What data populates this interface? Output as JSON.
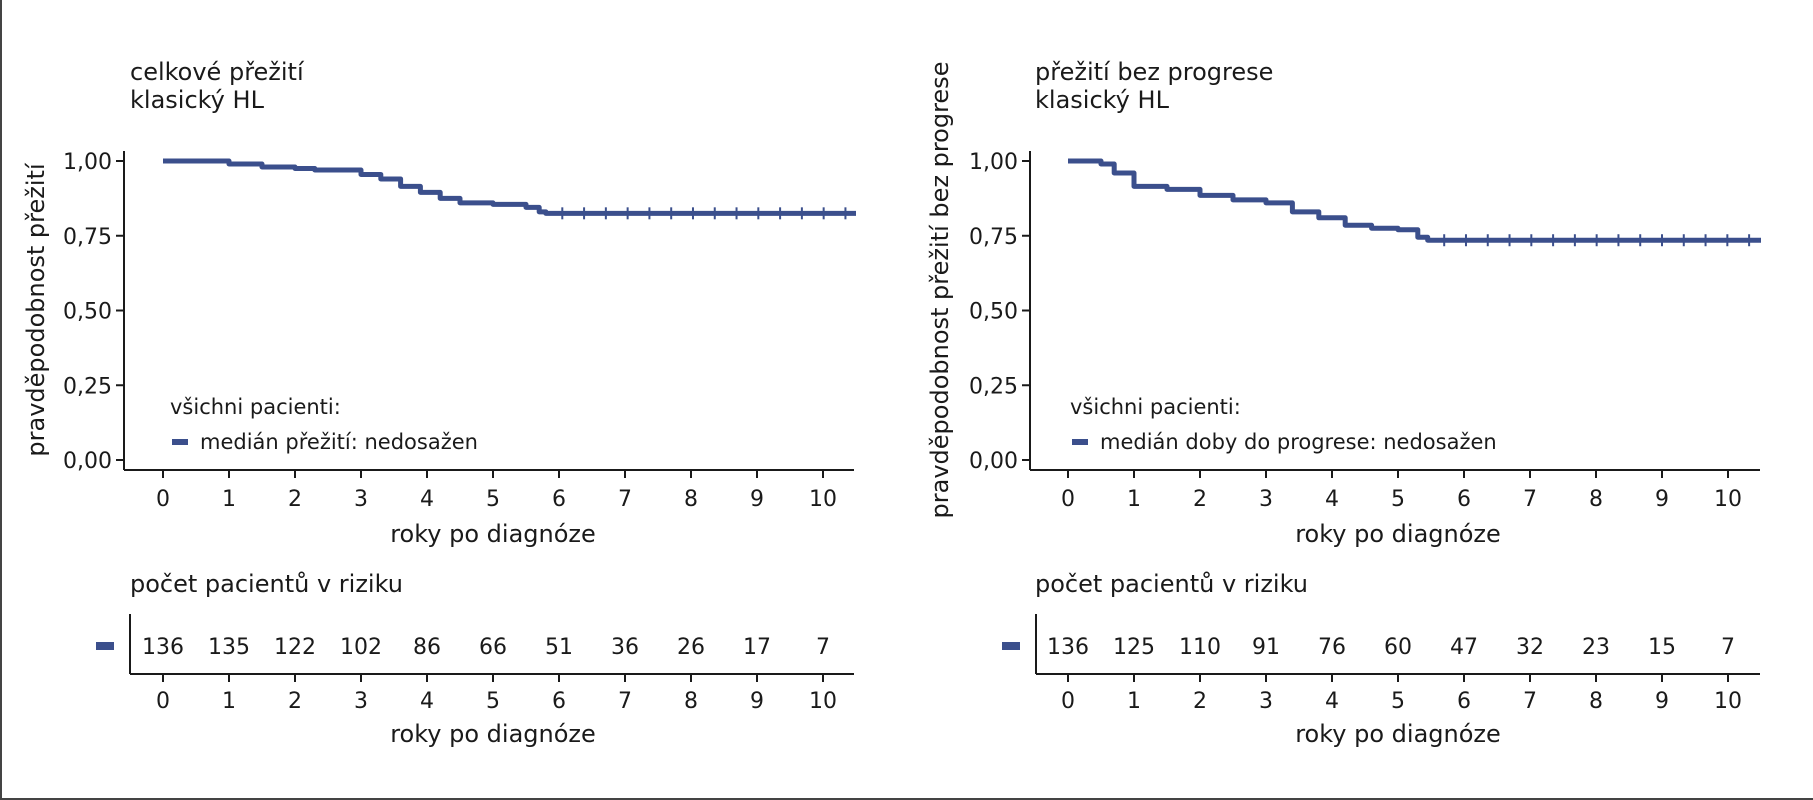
{
  "chart_data": [
    {
      "type": "line",
      "title": "celkové přežití",
      "subtitle": "klasický HL",
      "xlabel": "roky po diagnóze",
      "ylabel": "pravděpodobnost přežití",
      "xlim": [
        0,
        10.5
      ],
      "ylim": [
        0,
        1
      ],
      "x_ticks": [
        "0",
        "1",
        "2",
        "3",
        "4",
        "5",
        "6",
        "7",
        "8",
        "9",
        "10"
      ],
      "y_ticks": [
        "0,00",
        "0,25",
        "0,50",
        "0,75",
        "1,00"
      ],
      "grid": false,
      "legend": {
        "placement": "bottom-left",
        "heading": "všichni pacienti:",
        "entry": "medián přežití: nedosažen"
      },
      "series": [
        {
          "color": "#3b4f8c",
          "x": [
            0,
            0.9,
            1.0,
            1.5,
            2.0,
            2.3,
            2.8,
            3.0,
            3.3,
            3.6,
            3.9,
            4.2,
            4.5,
            5.0,
            5.5,
            5.7,
            5.8,
            10.5
          ],
          "y": [
            1.0,
            1.0,
            0.99,
            0.98,
            0.975,
            0.97,
            0.97,
            0.955,
            0.94,
            0.915,
            0.895,
            0.875,
            0.86,
            0.855,
            0.845,
            0.83,
            0.825,
            0.825
          ]
        }
      ],
      "risk_table": {
        "title": "počet pacientů v riziku",
        "xlabel": "roky po diagnóze",
        "x_ticks": [
          "0",
          "1",
          "2",
          "3",
          "4",
          "5",
          "6",
          "7",
          "8",
          "9",
          "10"
        ],
        "counts": [
          "136",
          "135",
          "122",
          "102",
          "86",
          "66",
          "51",
          "36",
          "26",
          "17",
          "7"
        ]
      }
    },
    {
      "type": "line",
      "title": "přežití bez progrese",
      "subtitle": "klasický HL",
      "xlabel": "roky po diagnóze",
      "ylabel": "pravděpodobnost přežití bez progrese",
      "xlim": [
        0,
        10.5
      ],
      "ylim": [
        0,
        1
      ],
      "x_ticks": [
        "0",
        "1",
        "2",
        "3",
        "4",
        "5",
        "6",
        "7",
        "8",
        "9",
        "10"
      ],
      "y_ticks": [
        "0,00",
        "0,25",
        "0,50",
        "0,75",
        "1,00"
      ],
      "grid": false,
      "legend": {
        "placement": "bottom-left",
        "heading": "všichni pacienti:",
        "entry": "medián doby do progrese: nedosažen"
      },
      "series": [
        {
          "color": "#3b4f8c",
          "x": [
            0,
            0.5,
            0.7,
            1.0,
            1.5,
            2.0,
            2.5,
            3.0,
            3.4,
            3.8,
            4.2,
            4.6,
            5.0,
            5.3,
            5.45,
            10.5
          ],
          "y": [
            1.0,
            0.99,
            0.96,
            0.915,
            0.905,
            0.885,
            0.87,
            0.86,
            0.83,
            0.81,
            0.785,
            0.775,
            0.77,
            0.745,
            0.735,
            0.735
          ]
        }
      ],
      "risk_table": {
        "title": "počet pacientů v riziku",
        "xlabel": "roky po diagnóze",
        "x_ticks": [
          "0",
          "1",
          "2",
          "3",
          "4",
          "5",
          "6",
          "7",
          "8",
          "9",
          "10"
        ],
        "counts": [
          "136",
          "125",
          "110",
          "91",
          "76",
          "60",
          "47",
          "32",
          "23",
          "15",
          "7"
        ]
      }
    }
  ]
}
